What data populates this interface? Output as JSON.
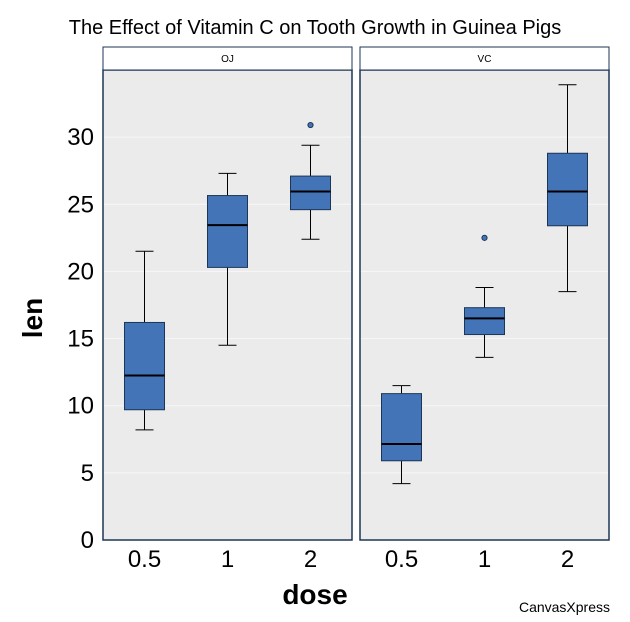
{
  "chart_data": {
    "type": "box",
    "title": "The Effect of Vitamin C on Tooth Growth in Guinea Pigs",
    "xlabel": "dose",
    "ylabel": "len",
    "ylim": [
      0,
      35
    ],
    "yticks": [
      0,
      5,
      10,
      15,
      20,
      25,
      30
    ],
    "categories": [
      "0.5",
      "1",
      "2"
    ],
    "grid": true,
    "credit": "CanvasXpress",
    "colors": {
      "box_fill": "#4474b8",
      "box_stroke": "#1c3656",
      "panel_bg": "#ebebeb",
      "panel_border": "#1c3656",
      "grid": "#f7f7f7"
    },
    "panels": [
      {
        "label": "OJ",
        "boxes": [
          {
            "dose": "0.5",
            "min": 8.2,
            "q1": 9.7,
            "median": 12.25,
            "q3": 16.2,
            "max": 21.5,
            "outliers": []
          },
          {
            "dose": "1",
            "min": 14.5,
            "q1": 20.3,
            "median": 23.45,
            "q3": 25.65,
            "max": 27.3,
            "outliers": []
          },
          {
            "dose": "2",
            "min": 22.4,
            "q1": 24.6,
            "median": 25.95,
            "q3": 27.1,
            "max": 29.4,
            "outliers": [
              30.9
            ]
          }
        ]
      },
      {
        "label": "VC",
        "boxes": [
          {
            "dose": "0.5",
            "min": 4.2,
            "q1": 5.9,
            "median": 7.15,
            "q3": 10.9,
            "max": 11.5,
            "outliers": []
          },
          {
            "dose": "1",
            "min": 13.6,
            "q1": 15.3,
            "median": 16.5,
            "q3": 17.3,
            "max": 18.8,
            "outliers": [
              22.5
            ]
          },
          {
            "dose": "2",
            "min": 18.5,
            "q1": 23.4,
            "median": 25.95,
            "q3": 28.8,
            "max": 33.9,
            "outliers": []
          }
        ]
      }
    ]
  }
}
